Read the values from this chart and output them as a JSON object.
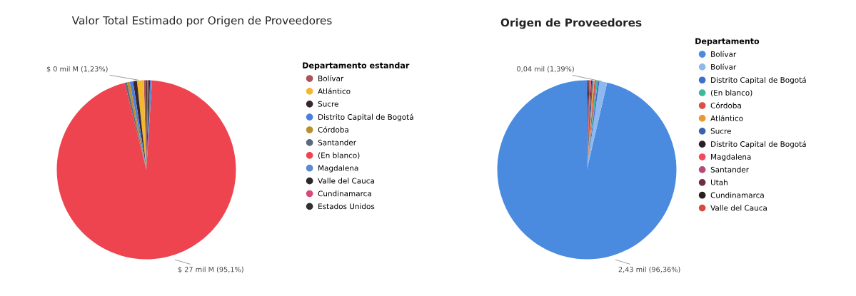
{
  "chart_data": [
    {
      "type": "pie",
      "title": "Valor Total Estimado por Origen de Proveedores",
      "legend_title": "Departamento estandar",
      "legend": "right",
      "categories": [
        "Bolívar",
        "Atlántico",
        "Sucre",
        "Distrito Capital de Bogotá",
        "Córdoba",
        "Santander",
        "(En blanco)",
        "Magdalena",
        "Valle del Cauca",
        "Cundinamarca",
        "Estados Unidos"
      ],
      "values": [
        0.45,
        1.23,
        0.7,
        0.6,
        0.5,
        0.4,
        95.1,
        0.35,
        0.3,
        0.22,
        0.15
      ],
      "colors": [
        "#b0525a",
        "#f2b830",
        "#3a2530",
        "#4a7fe0",
        "#b8902e",
        "#5a6a80",
        "#ee4450",
        "#5a8ad0",
        "#2a2a2a",
        "#d84a78",
        "#303030"
      ],
      "value_labels": [
        null,
        "$ 0 mil M (1,23%)",
        null,
        null,
        null,
        null,
        "$ 27 mil M (95,1%)",
        null,
        null,
        null,
        null
      ]
    },
    {
      "type": "pie",
      "title": "Origen de Proveedores",
      "legend_title": "Departamento",
      "legend": "right",
      "categories": [
        "Bolívar",
        "Bolívar",
        "Distrito Capital de Bogotá",
        "(En blanco)",
        "Córdoba",
        "Atlántico",
        "Sucre",
        "Distrito Capital de Bogotá",
        "Magdalena",
        "Santander",
        "Utah",
        "Cundinamarca",
        "Valle del Cauca"
      ],
      "values": [
        96.36,
        1.39,
        0.3,
        0.3,
        0.3,
        0.25,
        0.2,
        0.15,
        0.15,
        0.15,
        0.15,
        0.15,
        0.15
      ],
      "colors": [
        "#4a8be0",
        "#8fb8ee",
        "#3f6fd0",
        "#3fb8a0",
        "#d9504a",
        "#e89a30",
        "#3a62b0",
        "#2a2028",
        "#f04a60",
        "#b84a78",
        "#6a3040",
        "#2a2020",
        "#d84a40"
      ],
      "value_labels": [
        "2,43 mil (96,36%)",
        "0,04 mil (1,39%)",
        null,
        null,
        null,
        null,
        null,
        null,
        null,
        null,
        null,
        null,
        null
      ]
    }
  ]
}
